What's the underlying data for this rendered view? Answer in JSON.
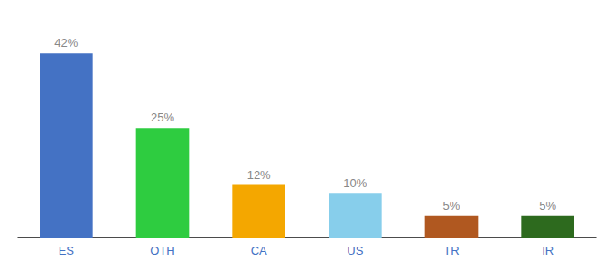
{
  "chart_data": {
    "type": "bar",
    "categories": [
      "ES",
      "OTH",
      "CA",
      "US",
      "TR",
      "IR"
    ],
    "values": [
      42,
      25,
      12,
      10,
      5,
      5
    ],
    "value_labels": [
      "42%",
      "25%",
      "12%",
      "10%",
      "5%",
      "5%"
    ],
    "colors": [
      "#4472c4",
      "#2ecc40",
      "#f4a700",
      "#87ceeb",
      "#b05820",
      "#2d6a1e"
    ],
    "ylim": [
      0,
      48
    ],
    "data_labels": true,
    "tick_labels": "x",
    "grid": false
  }
}
